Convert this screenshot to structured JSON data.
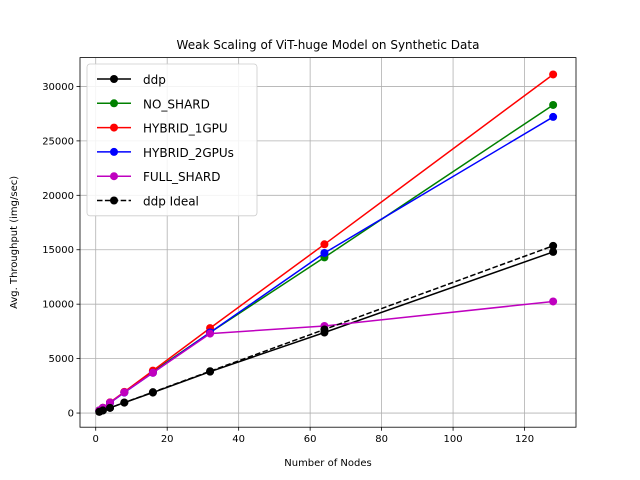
{
  "chart_data": {
    "type": "line",
    "title": "Weak Scaling of ViT-huge Model on Synthetic Data",
    "xlabel": "Number of Nodes",
    "ylabel": "Avg. Throughput (img/sec)",
    "xlim": [
      -4.4,
      134.4
    ],
    "ylim": [
      -1300,
      32650
    ],
    "xticks": [
      0,
      20,
      40,
      60,
      80,
      100,
      120
    ],
    "yticks": [
      0,
      5000,
      10000,
      15000,
      20000,
      25000,
      30000
    ],
    "grid": true,
    "legend_position": "top-left",
    "x": [
      1,
      2,
      4,
      8,
      16,
      32,
      64,
      128
    ],
    "series": [
      {
        "name": "ddp",
        "color": "#000000",
        "dashed": false,
        "values": [
          120,
          240,
          480,
          960,
          1880,
          3800,
          7400,
          14800
        ]
      },
      {
        "name": "NO_SHARD",
        "color": "#008000",
        "dashed": false,
        "values": [
          240,
          480,
          960,
          1900,
          3800,
          7400,
          14300,
          28300
        ]
      },
      {
        "name": "HYBRID_1GPU",
        "color": "#ff0000",
        "dashed": false,
        "values": [
          240,
          490,
          980,
          1950,
          3900,
          7800,
          15500,
          31100
        ]
      },
      {
        "name": "HYBRID_2GPUs",
        "color": "#0000ff",
        "dashed": false,
        "values": [
          230,
          470,
          940,
          1880,
          3700,
          7400,
          14700,
          27200
        ]
      },
      {
        "name": "FULL_SHARD",
        "color": "#bf00bf",
        "dashed": false,
        "values": [
          240,
          480,
          960,
          1900,
          3700,
          7300,
          8000,
          10250
        ]
      },
      {
        "name": "ddp Ideal",
        "color": "#000000",
        "dashed": true,
        "values": [
          120,
          240,
          480,
          960,
          1920,
          3840,
          7680,
          15360
        ]
      }
    ]
  }
}
